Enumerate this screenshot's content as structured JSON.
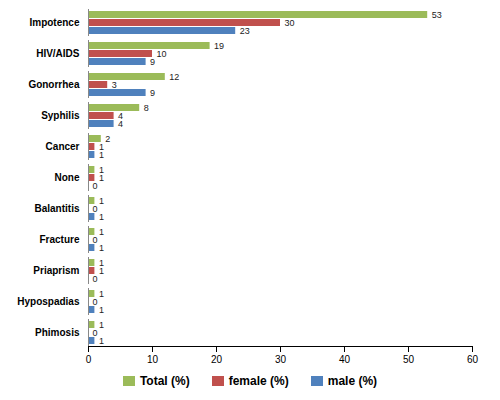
{
  "chart_data": {
    "type": "bar",
    "orientation": "horizontal",
    "data_labels": true,
    "grid": false,
    "legend": "bottom",
    "categories": [
      "Impotence",
      "HIV/AIDS",
      "Gonorrhea",
      "Syphilis",
      "Cancer",
      "None",
      "Balantitis",
      "Fracture",
      "Priaprism",
      "Hypospadias",
      "Phimosis"
    ],
    "series": [
      {
        "name": "Total  (%)",
        "color": "#9bbb59",
        "values": [
          53,
          19,
          12,
          8,
          2,
          1,
          1,
          1,
          1,
          1,
          1
        ]
      },
      {
        "name": "female (%)",
        "color": "#c0504d",
        "values": [
          30,
          10,
          3,
          4,
          1,
          1,
          0,
          0,
          1,
          0,
          0
        ]
      },
      {
        "name": "male (%)",
        "color": "#4f81bd",
        "values": [
          23,
          9,
          9,
          4,
          1,
          0,
          1,
          1,
          0,
          1,
          1
        ]
      }
    ],
    "xlim": [
      0,
      60
    ],
    "xticks": [
      0,
      10,
      20,
      30,
      40,
      50,
      60
    ]
  }
}
